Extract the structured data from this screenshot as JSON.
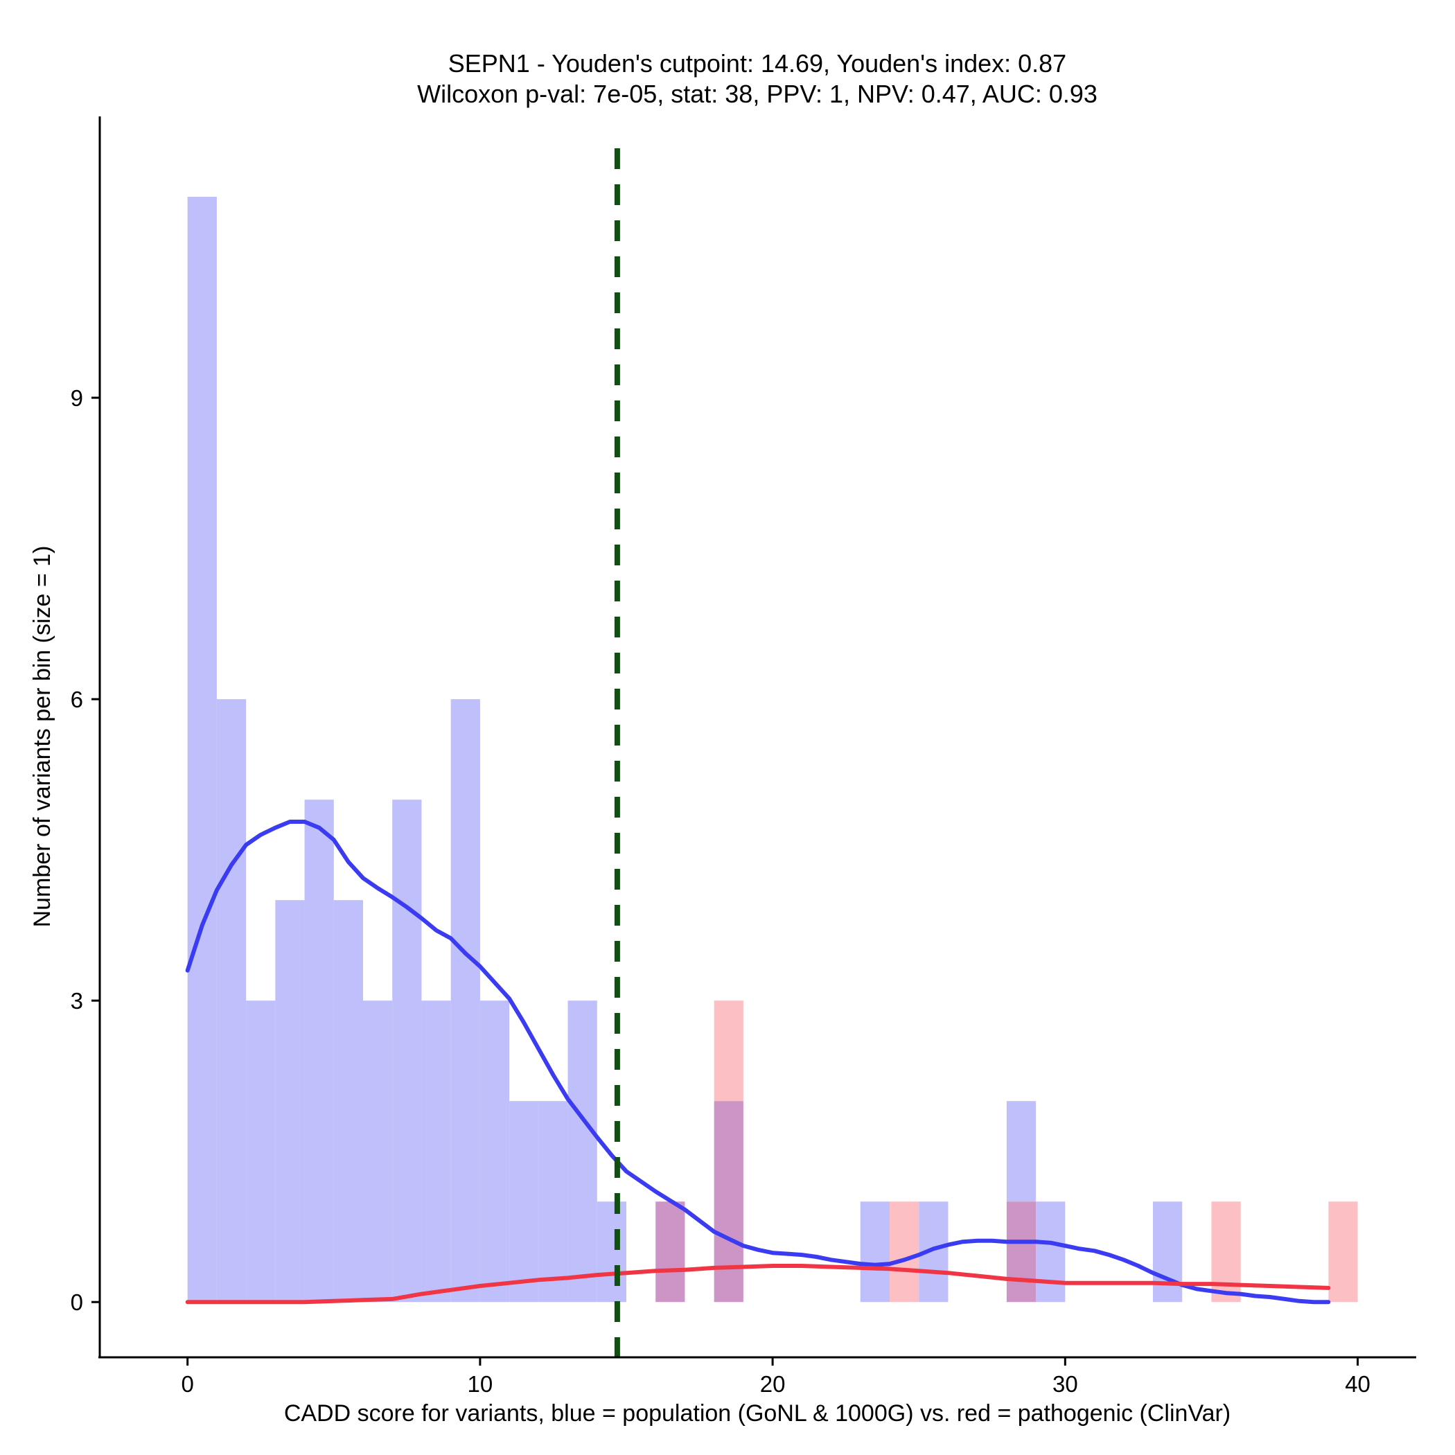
{
  "chart_data": {
    "type": "bar",
    "title_line1": "SEPN1 - Youden's cutpoint: 14.69, Youden's index: 0.87",
    "title_line2": "Wilcoxon p-val: 7e-05, stat: 38, PPV: 1, NPV: 0.47, AUC: 0.93",
    "xlabel": "CADD score for variants, blue = population (GoNL & 1000G) vs. red = pathogenic (ClinVar)",
    "ylabel": "Number of variants per bin (size = 1)",
    "xlim": [
      -3,
      42
    ],
    "ylim": [
      -0.55,
      11.8
    ],
    "xticks": [
      0,
      10,
      20,
      30,
      40
    ],
    "xtick_labels": [
      "0",
      "10",
      "20",
      "30",
      "40"
    ],
    "yticks": [
      0,
      3,
      6,
      9
    ],
    "ytick_labels": [
      "0",
      "3",
      "6",
      "9"
    ],
    "bin_width": 1,
    "cutpoint": 14.69,
    "colors": {
      "population_bar": "#bfbffb",
      "pathogenic_bar": "#fcbfc3",
      "overlap_bar": "#cc95c6",
      "population_density": "#3b3bf2",
      "pathogenic_density": "#f03645",
      "cutpoint_line": "#0f4f0f"
    },
    "series": [
      {
        "name": "population (GoNL & 1000G)",
        "bins": [
          [
            0,
            11
          ],
          [
            1,
            6
          ],
          [
            2,
            3
          ],
          [
            3,
            4
          ],
          [
            4,
            5
          ],
          [
            5,
            4
          ],
          [
            6,
            3
          ],
          [
            7,
            5
          ],
          [
            8,
            3
          ],
          [
            9,
            6
          ],
          [
            10,
            3
          ],
          [
            11,
            2
          ],
          [
            12,
            2
          ],
          [
            13,
            3
          ],
          [
            14,
            1
          ],
          [
            16,
            1
          ],
          [
            18,
            2
          ],
          [
            23,
            1
          ],
          [
            25,
            1
          ],
          [
            28,
            2
          ],
          [
            29,
            1
          ],
          [
            33,
            1
          ]
        ],
        "density": [
          [
            0,
            3.3
          ],
          [
            0.5,
            3.75
          ],
          [
            1,
            4.1
          ],
          [
            1.5,
            4.35
          ],
          [
            2,
            4.55
          ],
          [
            2.5,
            4.65
          ],
          [
            3,
            4.72
          ],
          [
            3.5,
            4.78
          ],
          [
            4,
            4.78
          ],
          [
            4.5,
            4.72
          ],
          [
            5,
            4.6
          ],
          [
            5.5,
            4.38
          ],
          [
            6,
            4.22
          ],
          [
            6.5,
            4.12
          ],
          [
            7,
            4.03
          ],
          [
            7.5,
            3.93
          ],
          [
            8,
            3.82
          ],
          [
            8.5,
            3.7
          ],
          [
            9,
            3.62
          ],
          [
            9.5,
            3.47
          ],
          [
            10,
            3.34
          ],
          [
            10.5,
            3.18
          ],
          [
            11,
            3.02
          ],
          [
            11.5,
            2.78
          ],
          [
            12,
            2.52
          ],
          [
            12.5,
            2.26
          ],
          [
            13,
            2.02
          ],
          [
            13.5,
            1.83
          ],
          [
            14,
            1.64
          ],
          [
            14.5,
            1.46
          ],
          [
            15,
            1.3
          ],
          [
            15.5,
            1.2
          ],
          [
            16,
            1.1
          ],
          [
            16.5,
            1.01
          ],
          [
            17,
            0.92
          ],
          [
            17.5,
            0.81
          ],
          [
            18,
            0.7
          ],
          [
            18.5,
            0.63
          ],
          [
            19,
            0.56
          ],
          [
            19.5,
            0.52
          ],
          [
            20,
            0.49
          ],
          [
            20.5,
            0.48
          ],
          [
            21,
            0.47
          ],
          [
            21.5,
            0.45
          ],
          [
            22,
            0.42
          ],
          [
            22.5,
            0.4
          ],
          [
            23,
            0.38
          ],
          [
            23.5,
            0.37
          ],
          [
            24,
            0.38
          ],
          [
            24.5,
            0.42
          ],
          [
            25,
            0.47
          ],
          [
            25.5,
            0.53
          ],
          [
            26,
            0.57
          ],
          [
            26.5,
            0.6
          ],
          [
            27,
            0.61
          ],
          [
            27.5,
            0.61
          ],
          [
            28,
            0.6
          ],
          [
            28.5,
            0.6
          ],
          [
            29,
            0.6
          ],
          [
            29.5,
            0.59
          ],
          [
            30,
            0.56
          ],
          [
            30.5,
            0.53
          ],
          [
            31,
            0.51
          ],
          [
            31.5,
            0.47
          ],
          [
            32,
            0.42
          ],
          [
            32.5,
            0.36
          ],
          [
            33,
            0.29
          ],
          [
            33.5,
            0.23
          ],
          [
            34,
            0.17
          ],
          [
            34.5,
            0.13
          ],
          [
            35,
            0.11
          ],
          [
            35.5,
            0.09
          ],
          [
            36,
            0.08
          ],
          [
            36.5,
            0.06
          ],
          [
            37,
            0.05
          ],
          [
            37.5,
            0.03
          ],
          [
            38,
            0.01
          ],
          [
            38.5,
            0.0
          ],
          [
            39,
            0.0
          ]
        ]
      },
      {
        "name": "pathogenic (ClinVar)",
        "bins": [
          [
            16,
            1
          ],
          [
            18,
            3
          ],
          [
            24,
            1
          ],
          [
            28,
            1
          ],
          [
            35,
            1
          ],
          [
            39,
            1
          ]
        ],
        "density": [
          [
            0,
            0.0
          ],
          [
            2,
            0.0
          ],
          [
            4,
            0.0
          ],
          [
            5,
            0.01
          ],
          [
            6,
            0.02
          ],
          [
            7,
            0.03
          ],
          [
            8,
            0.08
          ],
          [
            9,
            0.12
          ],
          [
            10,
            0.16
          ],
          [
            11,
            0.19
          ],
          [
            12,
            0.22
          ],
          [
            13,
            0.24
          ],
          [
            14,
            0.27
          ],
          [
            15,
            0.29
          ],
          [
            16,
            0.31
          ],
          [
            17,
            0.32
          ],
          [
            18,
            0.34
          ],
          [
            19,
            0.35
          ],
          [
            20,
            0.36
          ],
          [
            21,
            0.36
          ],
          [
            22,
            0.35
          ],
          [
            23,
            0.34
          ],
          [
            24,
            0.33
          ],
          [
            25,
            0.31
          ],
          [
            26,
            0.29
          ],
          [
            27,
            0.26
          ],
          [
            28,
            0.23
          ],
          [
            29,
            0.21
          ],
          [
            30,
            0.19
          ],
          [
            31,
            0.19
          ],
          [
            32,
            0.19
          ],
          [
            33,
            0.19
          ],
          [
            34,
            0.18
          ],
          [
            35,
            0.18
          ],
          [
            36,
            0.17
          ],
          [
            37,
            0.16
          ],
          [
            38,
            0.15
          ],
          [
            39,
            0.14
          ]
        ]
      }
    ]
  }
}
